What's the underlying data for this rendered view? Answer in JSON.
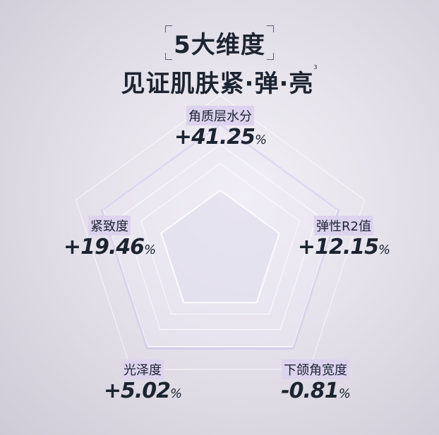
{
  "title": {
    "line1": "5大维度",
    "line2": "见证肌肤紧·弹·亮",
    "footnote": "3"
  },
  "metrics": [
    {
      "label": "角质层水分",
      "value": "+41.25",
      "unit": "%"
    },
    {
      "label": "弹性R2值",
      "value": "+12.15",
      "unit": "%"
    },
    {
      "label": "下颌角宽度",
      "value": "-0.81",
      "unit": "%"
    },
    {
      "label": "光泽度",
      "value": "+5.02",
      "unit": "%"
    },
    {
      "label": "紧致度",
      "value": "+19.46",
      "unit": "%"
    }
  ],
  "colors": {
    "label_highlight": "#dcd3ef",
    "text": "#1c2431",
    "accent": "#b9aee6"
  }
}
